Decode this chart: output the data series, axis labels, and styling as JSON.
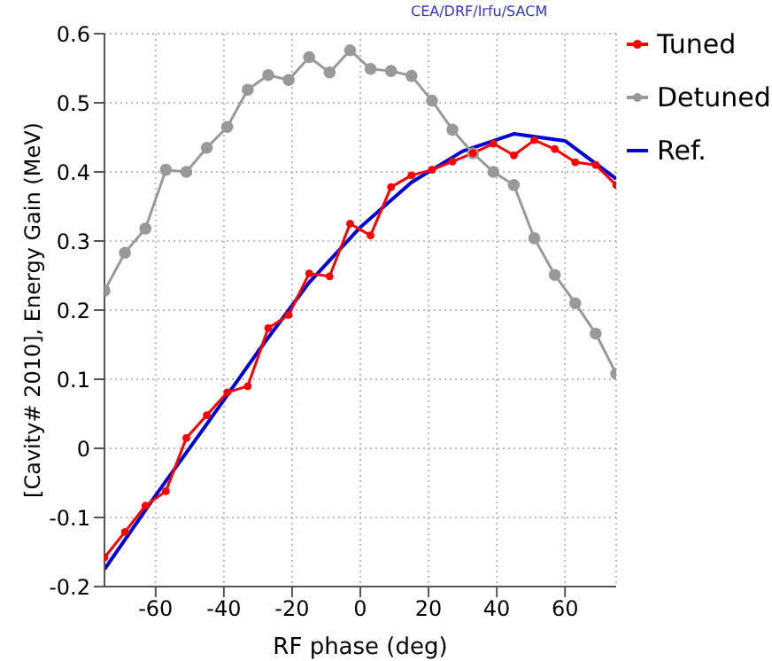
{
  "chart_data": {
    "type": "line",
    "xlabel": "RF phase (deg)",
    "ylabel": "[Cavity# 2010], Energy Gain (MeV)",
    "annotations": [
      "CEA/DRF/Irfu/SACM"
    ],
    "x": [
      -75,
      -69,
      -63,
      -57,
      -51,
      -45,
      -39,
      -33,
      -27,
      -21,
      -15,
      -9,
      -3,
      3,
      9,
      15,
      21,
      27,
      33,
      39,
      45,
      51,
      57,
      63,
      69,
      75
    ],
    "series": [
      {
        "name": "Tuned",
        "color": "#ff0000",
        "marker": "circle",
        "values": [
          -0.158,
          -0.121,
          -0.083,
          -0.062,
          0.015,
          0.048,
          0.081,
          0.09,
          0.174,
          0.193,
          0.253,
          0.249,
          0.325,
          0.308,
          0.378,
          0.395,
          0.403,
          0.415,
          0.427,
          0.441,
          0.424,
          0.446,
          0.433,
          0.414,
          0.41,
          0.381
        ]
      },
      {
        "name": "Detuned",
        "color": "#999999",
        "marker": "circle",
        "values": [
          0.228,
          0.283,
          0.318,
          0.403,
          0.4,
          0.435,
          0.465,
          0.519,
          0.54,
          0.533,
          0.566,
          0.544,
          0.576,
          0.549,
          0.546,
          0.539,
          0.503,
          0.461,
          0.427,
          0.4,
          0.381,
          0.304,
          0.251,
          0.21,
          0.166,
          0.108
        ]
      },
      {
        "name": "Ref.",
        "color": "#0000dd",
        "marker": "none",
        "x": [
          -75,
          -60,
          -45,
          -30,
          -15,
          0,
          15,
          30,
          45,
          60,
          75
        ],
        "values": [
          -0.175,
          -0.068,
          0.035,
          0.14,
          0.24,
          0.32,
          0.385,
          0.43,
          0.455,
          0.445,
          0.39
        ]
      }
    ],
    "xlim": [
      -75,
      75
    ],
    "xticks": [
      -60,
      -40,
      -20,
      0,
      20,
      40,
      60
    ],
    "ylim": [
      -0.2,
      0.6
    ],
    "yticks": [
      -0.2,
      -0.1,
      0,
      0.1,
      0.2,
      0.3,
      0.4,
      0.5,
      0.6
    ],
    "grid": true,
    "legend": "right",
    "line_style": "solid"
  }
}
